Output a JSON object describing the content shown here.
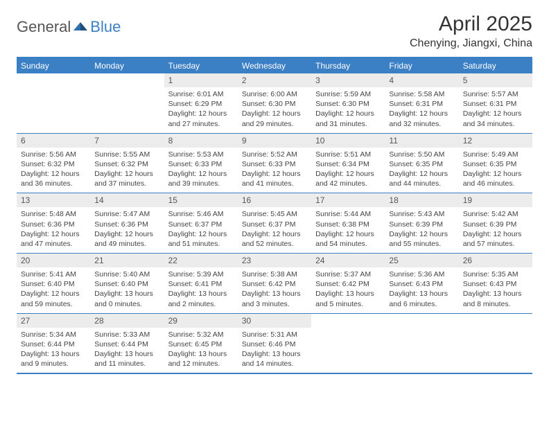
{
  "logo": {
    "part1": "General",
    "part2": "Blue"
  },
  "title": "April 2025",
  "location": "Chenying, Jiangxi, China",
  "colors": {
    "accent": "#3b7fc4",
    "header_bg": "#3b7fc4",
    "header_text": "#ffffff",
    "daynum_bg": "#ececec",
    "text": "#333333",
    "border": "#3b7fc4"
  },
  "weekdays": [
    "Sunday",
    "Monday",
    "Tuesday",
    "Wednesday",
    "Thursday",
    "Friday",
    "Saturday"
  ],
  "weeks": [
    [
      null,
      null,
      {
        "n": "1",
        "sunrise": "Sunrise: 6:01 AM",
        "sunset": "Sunset: 6:29 PM",
        "day": "Daylight: 12 hours and 27 minutes."
      },
      {
        "n": "2",
        "sunrise": "Sunrise: 6:00 AM",
        "sunset": "Sunset: 6:30 PM",
        "day": "Daylight: 12 hours and 29 minutes."
      },
      {
        "n": "3",
        "sunrise": "Sunrise: 5:59 AM",
        "sunset": "Sunset: 6:30 PM",
        "day": "Daylight: 12 hours and 31 minutes."
      },
      {
        "n": "4",
        "sunrise": "Sunrise: 5:58 AM",
        "sunset": "Sunset: 6:31 PM",
        "day": "Daylight: 12 hours and 32 minutes."
      },
      {
        "n": "5",
        "sunrise": "Sunrise: 5:57 AM",
        "sunset": "Sunset: 6:31 PM",
        "day": "Daylight: 12 hours and 34 minutes."
      }
    ],
    [
      {
        "n": "6",
        "sunrise": "Sunrise: 5:56 AM",
        "sunset": "Sunset: 6:32 PM",
        "day": "Daylight: 12 hours and 36 minutes."
      },
      {
        "n": "7",
        "sunrise": "Sunrise: 5:55 AM",
        "sunset": "Sunset: 6:32 PM",
        "day": "Daylight: 12 hours and 37 minutes."
      },
      {
        "n": "8",
        "sunrise": "Sunrise: 5:53 AM",
        "sunset": "Sunset: 6:33 PM",
        "day": "Daylight: 12 hours and 39 minutes."
      },
      {
        "n": "9",
        "sunrise": "Sunrise: 5:52 AM",
        "sunset": "Sunset: 6:33 PM",
        "day": "Daylight: 12 hours and 41 minutes."
      },
      {
        "n": "10",
        "sunrise": "Sunrise: 5:51 AM",
        "sunset": "Sunset: 6:34 PM",
        "day": "Daylight: 12 hours and 42 minutes."
      },
      {
        "n": "11",
        "sunrise": "Sunrise: 5:50 AM",
        "sunset": "Sunset: 6:35 PM",
        "day": "Daylight: 12 hours and 44 minutes."
      },
      {
        "n": "12",
        "sunrise": "Sunrise: 5:49 AM",
        "sunset": "Sunset: 6:35 PM",
        "day": "Daylight: 12 hours and 46 minutes."
      }
    ],
    [
      {
        "n": "13",
        "sunrise": "Sunrise: 5:48 AM",
        "sunset": "Sunset: 6:36 PM",
        "day": "Daylight: 12 hours and 47 minutes."
      },
      {
        "n": "14",
        "sunrise": "Sunrise: 5:47 AM",
        "sunset": "Sunset: 6:36 PM",
        "day": "Daylight: 12 hours and 49 minutes."
      },
      {
        "n": "15",
        "sunrise": "Sunrise: 5:46 AM",
        "sunset": "Sunset: 6:37 PM",
        "day": "Daylight: 12 hours and 51 minutes."
      },
      {
        "n": "16",
        "sunrise": "Sunrise: 5:45 AM",
        "sunset": "Sunset: 6:37 PM",
        "day": "Daylight: 12 hours and 52 minutes."
      },
      {
        "n": "17",
        "sunrise": "Sunrise: 5:44 AM",
        "sunset": "Sunset: 6:38 PM",
        "day": "Daylight: 12 hours and 54 minutes."
      },
      {
        "n": "18",
        "sunrise": "Sunrise: 5:43 AM",
        "sunset": "Sunset: 6:39 PM",
        "day": "Daylight: 12 hours and 55 minutes."
      },
      {
        "n": "19",
        "sunrise": "Sunrise: 5:42 AM",
        "sunset": "Sunset: 6:39 PM",
        "day": "Daylight: 12 hours and 57 minutes."
      }
    ],
    [
      {
        "n": "20",
        "sunrise": "Sunrise: 5:41 AM",
        "sunset": "Sunset: 6:40 PM",
        "day": "Daylight: 12 hours and 59 minutes."
      },
      {
        "n": "21",
        "sunrise": "Sunrise: 5:40 AM",
        "sunset": "Sunset: 6:40 PM",
        "day": "Daylight: 13 hours and 0 minutes."
      },
      {
        "n": "22",
        "sunrise": "Sunrise: 5:39 AM",
        "sunset": "Sunset: 6:41 PM",
        "day": "Daylight: 13 hours and 2 minutes."
      },
      {
        "n": "23",
        "sunrise": "Sunrise: 5:38 AM",
        "sunset": "Sunset: 6:42 PM",
        "day": "Daylight: 13 hours and 3 minutes."
      },
      {
        "n": "24",
        "sunrise": "Sunrise: 5:37 AM",
        "sunset": "Sunset: 6:42 PM",
        "day": "Daylight: 13 hours and 5 minutes."
      },
      {
        "n": "25",
        "sunrise": "Sunrise: 5:36 AM",
        "sunset": "Sunset: 6:43 PM",
        "day": "Daylight: 13 hours and 6 minutes."
      },
      {
        "n": "26",
        "sunrise": "Sunrise: 5:35 AM",
        "sunset": "Sunset: 6:43 PM",
        "day": "Daylight: 13 hours and 8 minutes."
      }
    ],
    [
      {
        "n": "27",
        "sunrise": "Sunrise: 5:34 AM",
        "sunset": "Sunset: 6:44 PM",
        "day": "Daylight: 13 hours and 9 minutes."
      },
      {
        "n": "28",
        "sunrise": "Sunrise: 5:33 AM",
        "sunset": "Sunset: 6:44 PM",
        "day": "Daylight: 13 hours and 11 minutes."
      },
      {
        "n": "29",
        "sunrise": "Sunrise: 5:32 AM",
        "sunset": "Sunset: 6:45 PM",
        "day": "Daylight: 13 hours and 12 minutes."
      },
      {
        "n": "30",
        "sunrise": "Sunrise: 5:31 AM",
        "sunset": "Sunset: 6:46 PM",
        "day": "Daylight: 13 hours and 14 minutes."
      },
      null,
      null,
      null
    ]
  ]
}
